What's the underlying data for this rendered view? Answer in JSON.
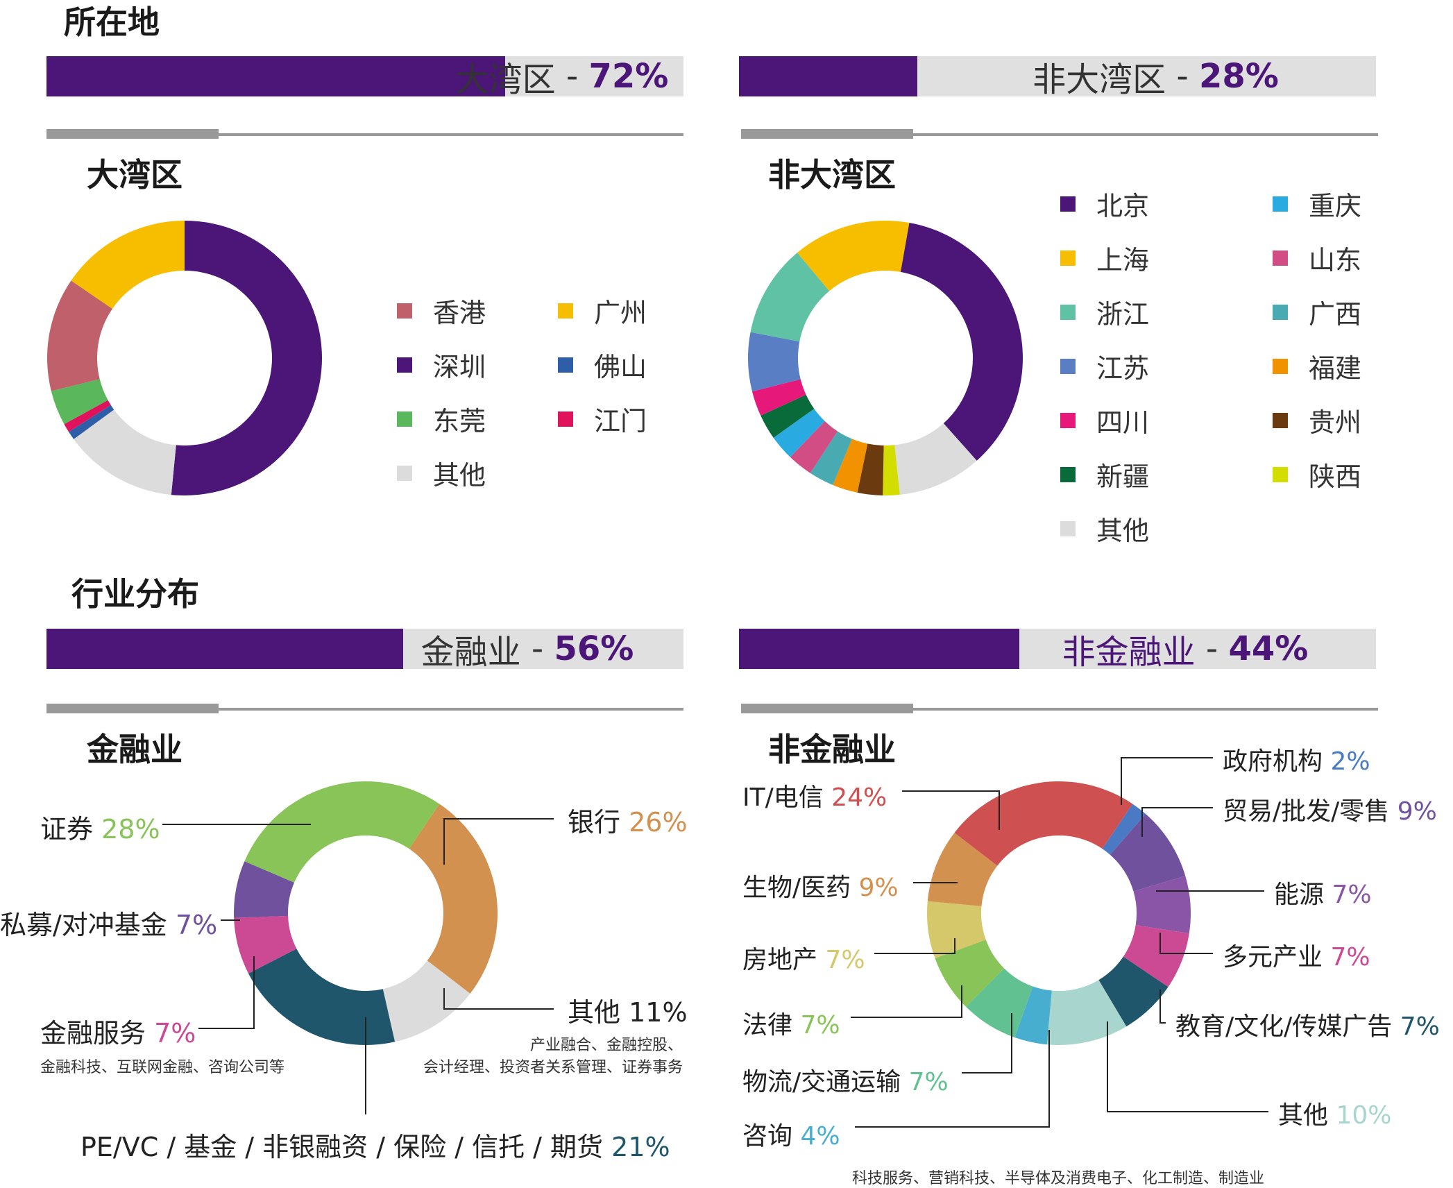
{
  "location": {
    "title": "所在地",
    "gba_bar": {
      "label": "大湾区",
      "sep": " - ",
      "percent": "72%",
      "value": 0.72
    },
    "non_gba_bar": {
      "label": "非大湾区",
      "sep": " - ",
      "percent": "28%",
      "value": 0.28
    },
    "gba_title": "大湾区",
    "non_gba_title": "非大湾区"
  },
  "industry": {
    "title": "行业分布",
    "fin_bar": {
      "label": "金融业",
      "sep": " - ",
      "percent": "56%",
      "value": 0.56
    },
    "nonfin_bar": {
      "label": "非金融业",
      "sep": " - ",
      "percent": "44%",
      "value": 0.44
    },
    "fin_title": "金融业",
    "nonfin_title": "非金融业",
    "fin_services_note": "金融科技、互联网金融、咨询公司等",
    "fin_other_note_1": "产业融合、金融控股、",
    "fin_other_note_2": "会计经理、投资者关系管理、证券事务",
    "nonfin_other_note": "科技服务、营销科技、半导体及消费电子、化工制造、制造业"
  },
  "colors": {
    "purple": "#4b1677",
    "bar_bg": "#e0e0e0",
    "divider": "#999999"
  },
  "chart_data": [
    {
      "type": "pie",
      "title": "大湾区",
      "categories": [
        "深圳",
        "其他",
        "佛山",
        "江门",
        "东莞",
        "香港",
        "广州"
      ],
      "values": [
        50,
        13,
        1,
        1,
        4,
        13,
        15
      ],
      "colors": [
        "#4b1677",
        "#dcdcdc",
        "#2e5ea8",
        "#e0125b",
        "#5bb75b",
        "#c0606a",
        "#f7be00"
      ],
      "legend": [
        {
          "label": "香港",
          "color": "#c0606a"
        },
        {
          "label": "广州",
          "color": "#f7be00"
        },
        {
          "label": "深圳",
          "color": "#4b1677"
        },
        {
          "label": "佛山",
          "color": "#2e5ea8"
        },
        {
          "label": "东莞",
          "color": "#5bb75b"
        },
        {
          "label": "江门",
          "color": "#e0125b"
        },
        {
          "label": "其他",
          "color": "#dcdcdc"
        }
      ]
    },
    {
      "type": "pie",
      "title": "非大湾区",
      "categories": [
        "北京",
        "其他",
        "陕西",
        "贵州",
        "福建",
        "广西",
        "山东",
        "重庆",
        "新疆",
        "四川",
        "江苏",
        "浙江",
        "上海"
      ],
      "values": [
        36,
        10,
        2,
        3,
        3,
        3,
        3,
        3,
        3,
        3,
        7,
        11,
        14
      ],
      "colors": [
        "#4b1677",
        "#dcdcdc",
        "#d4dd00",
        "#6b3a0e",
        "#f39200",
        "#4aaab1",
        "#d24d83",
        "#29abe2",
        "#0a6b3a",
        "#e6197a",
        "#5a7ec4",
        "#5fc2a5",
        "#f7be00"
      ],
      "legend": [
        {
          "label": "北京",
          "color": "#4b1677"
        },
        {
          "label": "重庆",
          "color": "#29abe2"
        },
        {
          "label": "上海",
          "color": "#f7be00"
        },
        {
          "label": "山东",
          "color": "#d24d83"
        },
        {
          "label": "浙江",
          "color": "#5fc2a5"
        },
        {
          "label": "广西",
          "color": "#4aaab1"
        },
        {
          "label": "江苏",
          "color": "#5a7ec4"
        },
        {
          "label": "福建",
          "color": "#f39200"
        },
        {
          "label": "四川",
          "color": "#e6197a"
        },
        {
          "label": "贵州",
          "color": "#6b3a0e"
        },
        {
          "label": "新疆",
          "color": "#0a6b3a"
        },
        {
          "label": "陕西",
          "color": "#d4dd00"
        },
        {
          "label": "其他",
          "color": "#dcdcdc"
        }
      ]
    },
    {
      "type": "pie",
      "title": "金融业",
      "categories": [
        "银行",
        "其他",
        "PE/VC / 基金 / 非银融资 / 保险 / 信托 / 期货",
        "金融服务",
        "私募/对冲基金",
        "证券"
      ],
      "values": [
        26,
        11,
        21,
        7,
        7,
        28
      ],
      "colors": [
        "#d39150",
        "#dcdcdc",
        "#1f566b",
        "#cc4a94",
        "#70519e",
        "#88c458"
      ],
      "labels": [
        {
          "name": "银行",
          "pct": "26%",
          "pct_color": "#d39150"
        },
        {
          "name": "其他",
          "pct": "11%",
          "pct_color": "#222222"
        },
        {
          "name": "PE/VC / 基金 / 非银融资 / 保险 / 信托 / 期货",
          "pct": "21%",
          "pct_color": "#1f566b"
        },
        {
          "name": "金融服务",
          "pct": "7%",
          "pct_color": "#cc4a94"
        },
        {
          "name": "私募/对冲基金",
          "pct": "7%",
          "pct_color": "#70519e"
        },
        {
          "name": "证券",
          "pct": "28%",
          "pct_color": "#88c458"
        }
      ]
    },
    {
      "type": "pie",
      "title": "非金融业",
      "categories": [
        "政府机构",
        "贸易/批发/零售",
        "能源",
        "多元产业",
        "教育/文化/传媒广告",
        "其他",
        "咨询",
        "物流/交通运输",
        "法律",
        "房地产",
        "生物/医药",
        "IT/电信"
      ],
      "values": [
        2,
        9,
        7,
        7,
        7,
        10,
        4,
        7,
        7,
        7,
        9,
        24
      ],
      "colors": [
        "#4a7ac4",
        "#70519e",
        "#8a55a6",
        "#cc4a94",
        "#1f566b",
        "#a8d5cd",
        "#48aed0",
        "#62c190",
        "#88c458",
        "#d4c86a",
        "#d39150",
        "#cf5050"
      ],
      "labels": [
        {
          "name": "政府机构",
          "pct": "2%",
          "pct_color": "#4a7ac4"
        },
        {
          "name": "贸易/批发/零售",
          "pct": "9%",
          "pct_color": "#70519e"
        },
        {
          "name": "能源",
          "pct": "7%",
          "pct_color": "#8a55a6"
        },
        {
          "name": "多元产业",
          "pct": "7%",
          "pct_color": "#cc4a94"
        },
        {
          "name": "教育/文化/传媒广告",
          "pct": "7%",
          "pct_color": "#1f566b"
        },
        {
          "name": "其他",
          "pct": "10%",
          "pct_color": "#a8d5cd"
        },
        {
          "name": "咨询",
          "pct": "4%",
          "pct_color": "#48aed0"
        },
        {
          "name": "物流/交通运输",
          "pct": "7%",
          "pct_color": "#62c190"
        },
        {
          "name": "法律",
          "pct": "7%",
          "pct_color": "#88c458"
        },
        {
          "name": "房地产",
          "pct": "7%",
          "pct_color": "#d4c86a"
        },
        {
          "name": "生物/医药",
          "pct": "9%",
          "pct_color": "#d39150"
        },
        {
          "name": "IT/电信",
          "pct": "24%",
          "pct_color": "#cf5050"
        }
      ]
    }
  ]
}
